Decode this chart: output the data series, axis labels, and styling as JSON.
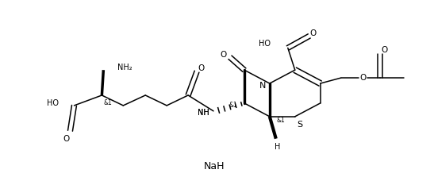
{
  "figure_width": 5.47,
  "figure_height": 2.33,
  "dpi": 100,
  "bg_color": "#ffffff",
  "line_color": "#000000",
  "line_width": 1.1,
  "font_size": 7.0,
  "text_color": "#000000",
  "NaH_label": "NaH",
  "NaH_x": 270,
  "NaH_y": 210,
  "xlim": [
    0,
    547
  ],
  "ylim": [
    0,
    233
  ]
}
